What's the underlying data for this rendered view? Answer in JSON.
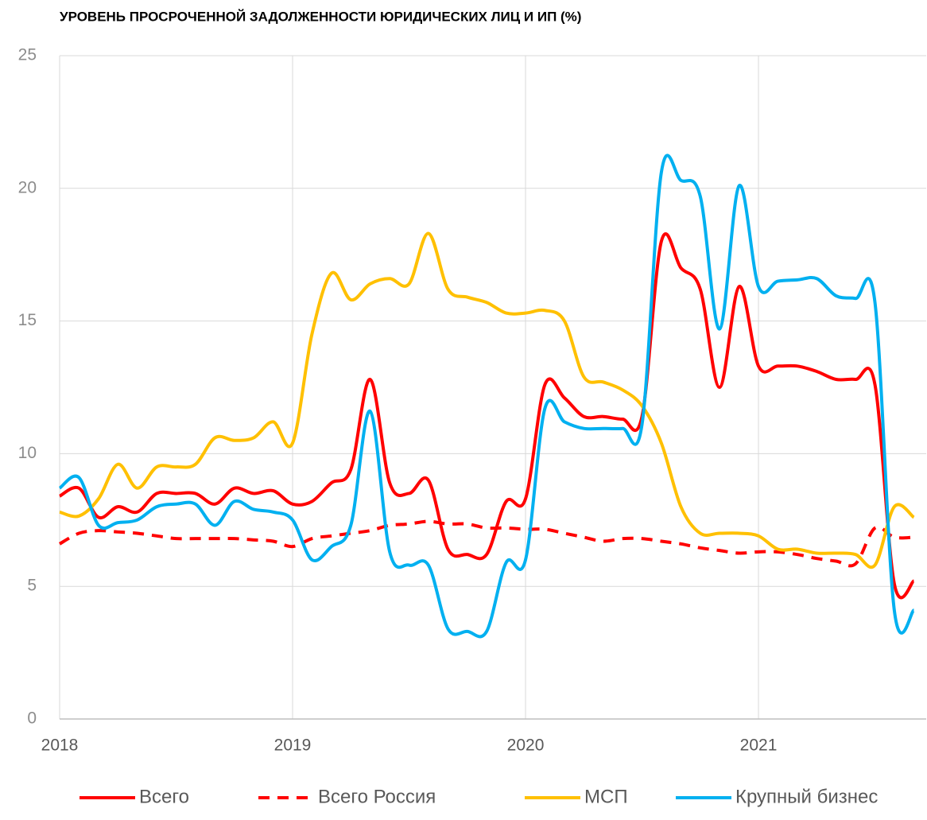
{
  "chart_data": {
    "type": "line",
    "title": "УРОВЕНЬ ПРОСРОЧЕННОЙ ЗАДОЛЖЕННОСТИ ЮРИДИЧЕСКИХ ЛИЦ И ИП (%)",
    "x": [
      2018.0,
      2018.083,
      2018.167,
      2018.25,
      2018.333,
      2018.417,
      2018.5,
      2018.583,
      2018.667,
      2018.75,
      2018.833,
      2018.917,
      2019.0,
      2019.083,
      2019.167,
      2019.25,
      2019.333,
      2019.417,
      2019.5,
      2019.583,
      2019.667,
      2019.75,
      2019.833,
      2019.917,
      2020.0,
      2020.083,
      2020.167,
      2020.25,
      2020.333,
      2020.417,
      2020.5,
      2020.583,
      2020.667,
      2020.75,
      2020.833,
      2020.917,
      2021.0,
      2021.083,
      2021.167,
      2021.25,
      2021.333,
      2021.417,
      2021.5,
      2021.583,
      2021.667
    ],
    "series": [
      {
        "name": "Всего",
        "color": "#ff0000",
        "dashed": false,
        "values": [
          8.4,
          8.7,
          7.6,
          8.0,
          7.8,
          8.5,
          8.5,
          8.5,
          8.1,
          8.7,
          8.5,
          8.6,
          8.1,
          8.2,
          8.9,
          9.4,
          12.8,
          8.9,
          8.5,
          9.0,
          6.4,
          6.2,
          6.2,
          8.2,
          8.3,
          12.6,
          12.1,
          11.4,
          11.4,
          11.3,
          11.4,
          18.0,
          17.0,
          16.2,
          12.5,
          16.3,
          13.3,
          13.3,
          13.3,
          13.1,
          12.8,
          12.8,
          12.6,
          5.1,
          5.2
        ]
      },
      {
        "name": "Всего Россия",
        "color": "#ff0000",
        "dashed": true,
        "values": [
          6.6,
          7.0,
          7.1,
          7.05,
          7.0,
          6.9,
          6.8,
          6.8,
          6.8,
          6.8,
          6.75,
          6.7,
          6.5,
          6.8,
          6.9,
          7.0,
          7.1,
          7.3,
          7.35,
          7.45,
          7.35,
          7.35,
          7.2,
          7.2,
          7.15,
          7.15,
          7.0,
          6.85,
          6.7,
          6.8,
          6.8,
          6.7,
          6.6,
          6.45,
          6.35,
          6.25,
          6.3,
          6.3,
          6.2,
          6.05,
          5.95,
          5.85,
          7.2,
          6.85,
          6.85
        ]
      },
      {
        "name": "МСП",
        "color": "#ffc000",
        "dashed": false,
        "values": [
          7.8,
          7.65,
          8.3,
          9.6,
          8.7,
          9.5,
          9.5,
          9.6,
          10.6,
          10.5,
          10.6,
          11.2,
          10.4,
          14.5,
          16.8,
          15.8,
          16.4,
          16.6,
          16.4,
          18.3,
          16.2,
          15.9,
          15.7,
          15.3,
          15.3,
          15.4,
          15.0,
          12.9,
          12.7,
          12.4,
          11.8,
          10.4,
          8.0,
          7.0,
          7.0,
          7.0,
          6.9,
          6.4,
          6.4,
          6.25,
          6.25,
          6.2,
          5.8,
          8.0,
          7.6
        ]
      },
      {
        "name": "Крупный бизнес",
        "color": "#00b0f0",
        "dashed": false,
        "values": [
          8.7,
          9.1,
          7.3,
          7.4,
          7.5,
          8.0,
          8.1,
          8.1,
          7.3,
          8.2,
          7.9,
          7.8,
          7.5,
          6.0,
          6.5,
          7.3,
          11.6,
          6.3,
          5.8,
          5.8,
          3.4,
          3.3,
          3.3,
          5.9,
          6.0,
          11.7,
          11.2,
          10.95,
          10.95,
          10.95,
          11.1,
          20.6,
          20.3,
          19.7,
          14.7,
          20.1,
          16.3,
          16.5,
          16.55,
          16.6,
          15.95,
          15.85,
          15.7,
          4.1,
          4.1
        ]
      }
    ],
    "xlim": [
      2018,
      2021.72
    ],
    "xticks": [
      2018,
      2019,
      2020,
      2021
    ],
    "ylim": [
      0,
      25
    ],
    "yticks": [
      0,
      5,
      10,
      15,
      20,
      25
    ],
    "grid": true,
    "legend": "bottom"
  }
}
